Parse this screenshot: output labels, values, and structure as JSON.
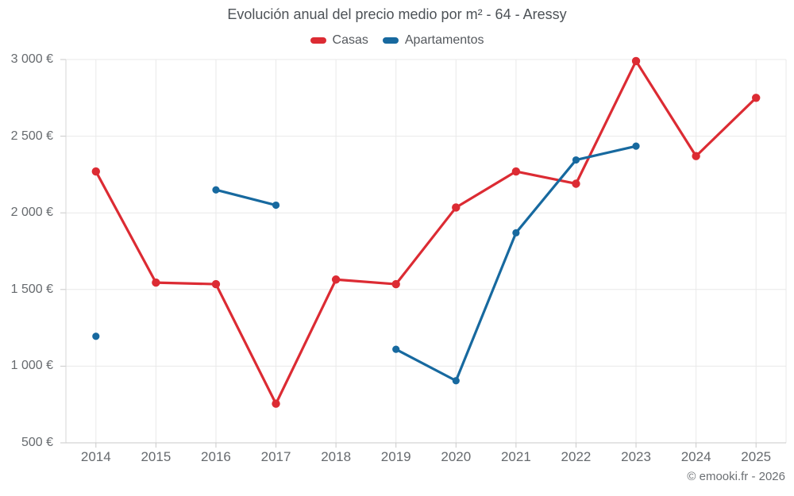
{
  "title": "Evolución anual del precio medio por m² - 64 - Aressy",
  "legend": {
    "items": [
      {
        "label": "Casas",
        "color": "#dc2b33"
      },
      {
        "label": "Apartamentos",
        "color": "#17699f"
      }
    ]
  },
  "footer": {
    "credit": "© emooki.fr - 2026"
  },
  "colors": {
    "casas": "#dc2b33",
    "apartamentos": "#17699f",
    "gridline": "#e9e9e9",
    "axis_line": "#c9c9c9",
    "title_text": "#4d5257",
    "axis_text": "#666a6e"
  },
  "chart_data": {
    "type": "line",
    "title": "Evolución anual del precio medio por m² - 64 - Aressy",
    "xlabel": "",
    "ylabel": "",
    "categories": [
      "2014",
      "2015",
      "2016",
      "2017",
      "2018",
      "2019",
      "2020",
      "2021",
      "2022",
      "2023",
      "2024",
      "2025"
    ],
    "series": [
      {
        "name": "Casas",
        "color": "#dc2b33",
        "marker_radius": 5.2,
        "values": [
          2270,
          1545,
          1535,
          755,
          1565,
          1535,
          2035,
          2270,
          2190,
          2990,
          2370,
          2750
        ]
      },
      {
        "name": "Apartamentos",
        "color": "#17699f",
        "marker_radius": 4.6,
        "values": [
          1195,
          null,
          2150,
          2050,
          null,
          1110,
          905,
          1870,
          2345,
          2435,
          null,
          null
        ]
      }
    ],
    "ylim": [
      500,
      3000
    ],
    "ytick_step": 500,
    "ytick_labels": [
      "500 €",
      "1 000 €",
      "1 500 €",
      "2 000 €",
      "2 500 €",
      "3 000 €"
    ],
    "grid": true,
    "legend_position": "top",
    "note": "Apartamentos has gaps in 2015, 2018, 2024, 2025; the 2014 apartamentos value is an isolated point"
  }
}
